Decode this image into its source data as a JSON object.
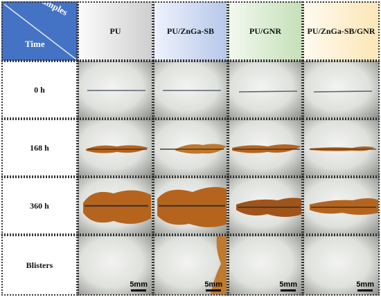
{
  "header": {
    "corner_top": "Samples",
    "corner_bottom": "Time",
    "columns": [
      "PU",
      "PU/ZnGa-SB",
      "PU/GNR",
      "PU/ZnGa-SB/GNR"
    ]
  },
  "rows": [
    "0 h",
    "168 h",
    "360 h",
    "Blisters"
  ],
  "scale_bar": "5mm",
  "colors": {
    "corner_bg": "#4472c4",
    "rust": "#b5641e",
    "scribe": "#5a6470"
  }
}
